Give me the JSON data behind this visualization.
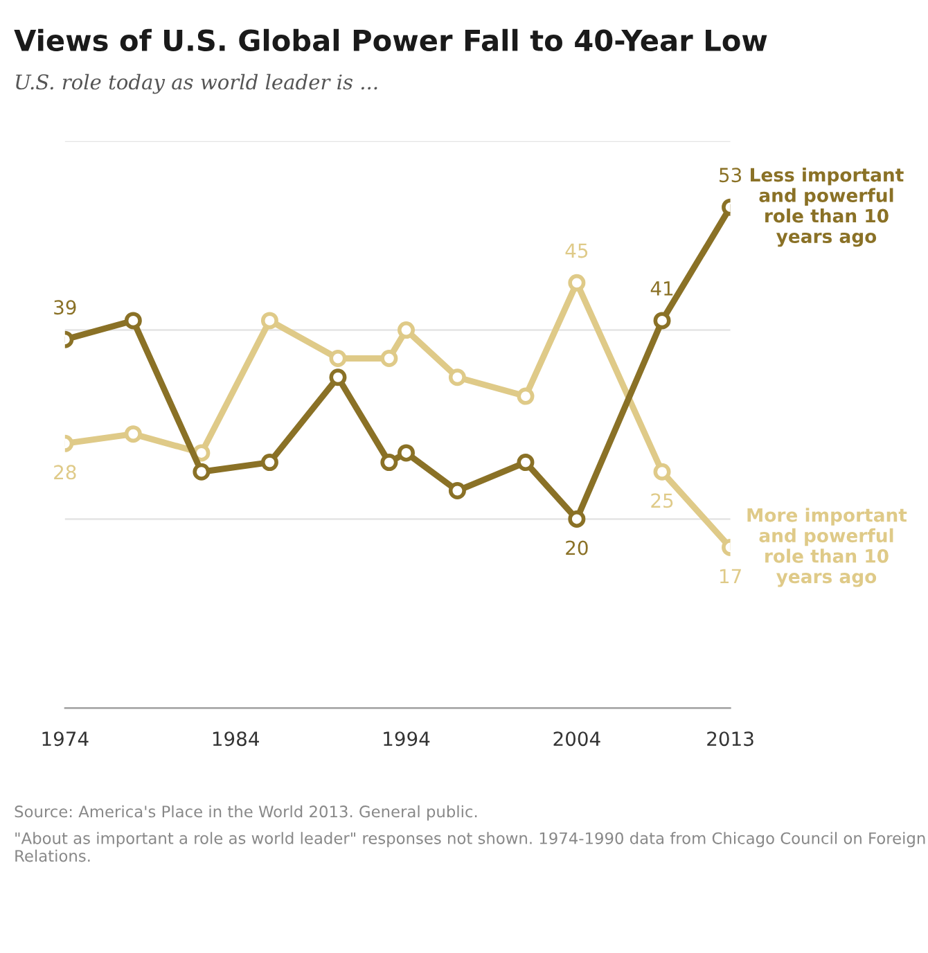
{
  "chart_data": {
    "type": "line",
    "title": "Views of U.S. Global Power Fall to 40-Year Low",
    "subtitle": "U.S. role today as world leader is ...",
    "x": [
      1974,
      1978,
      1982,
      1986,
      1990,
      1993,
      1994,
      1997,
      2001,
      2004,
      2009,
      2013
    ],
    "series": [
      {
        "name": "Less important\nand powerful\nrole than 10\nyears ago",
        "color": "#8a7126",
        "values": [
          39,
          41,
          25,
          26,
          35,
          26,
          27,
          23,
          26,
          20,
          41,
          53
        ],
        "value_labels": [
          "39",
          null,
          null,
          null,
          null,
          null,
          null,
          null,
          null,
          "20",
          "41",
          "53"
        ]
      },
      {
        "name": "More important\nand powerful\nrole than 10\nyears ago",
        "color": "#dfca88",
        "values": [
          28,
          29,
          27,
          41,
          37,
          37,
          40,
          35,
          33,
          45,
          25,
          17
        ],
        "value_labels": [
          "28",
          null,
          null,
          null,
          null,
          null,
          null,
          null,
          null,
          "45",
          "25",
          "17"
        ]
      }
    ],
    "xlim": [
      1974,
      2013
    ],
    "xticks": [
      1974,
      1984,
      1994,
      2004,
      2013
    ],
    "ylim": [
      0,
      60
    ],
    "yticks": [
      {
        "value": 0,
        "label": null
      },
      {
        "value": 20,
        "label": null
      },
      {
        "value": 40,
        "label": null
      },
      {
        "value": 60,
        "label": null
      }
    ],
    "tick_labels": "x",
    "grid": "y",
    "marker": "circle",
    "line_style": "solid",
    "annotations": [
      "Source: America's Place in the World 2013. General public.",
      "\"About as important a role as world leader\" responses not shown. 1974-1990 data from Chicago Council on Foreign Relations."
    ]
  }
}
